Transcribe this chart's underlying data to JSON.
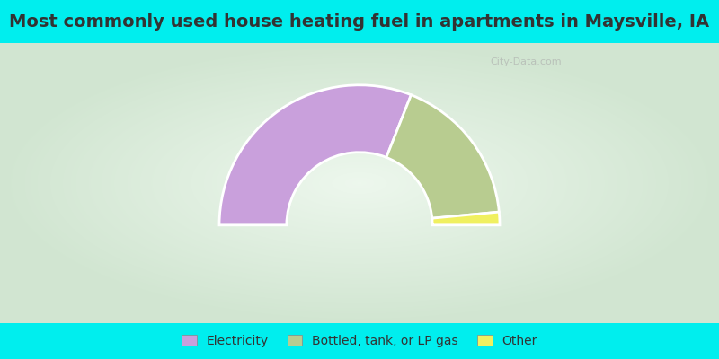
{
  "title": "Most commonly used house heating fuel in apartments in Maysville, IA",
  "categories": [
    "Electricity",
    "Bottled, tank, or LP gas",
    "Other"
  ],
  "values": [
    62,
    35,
    3
  ],
  "colors": [
    "#c9a0dc",
    "#b8cc90",
    "#f0f060"
  ],
  "outer_r": 1.0,
  "inner_r": 0.52,
  "background_color": "#00EEEE",
  "title_color": "#333333",
  "title_fontsize": 14,
  "legend_fontsize": 10,
  "title_bar_height": 0.12,
  "legend_bar_height": 0.1
}
